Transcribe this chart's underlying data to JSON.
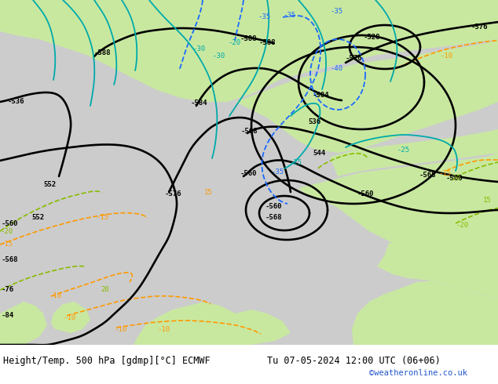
{
  "title_left": "Height/Temp. 500 hPa [gdmp][°C] ECMWF",
  "title_right": "Tu 07-05-2024 12:00 UTC (06+06)",
  "credit": "©weatheronline.co.uk",
  "bg_color": "#ffffff",
  "fig_width": 6.34,
  "fig_height": 4.9,
  "dpi": 100,
  "map_bg_green": "#c8e8a0",
  "map_bg_gray": "#cccccc",
  "map_bg_gray2": "#b8b8b8",
  "contour_black_color": "#000000",
  "contour_blue_color": "#1a6aff",
  "contour_cyan_color": "#00aaaa",
  "contour_green_color": "#88bb00",
  "contour_orange_color": "#ff9900",
  "label_color_black": "#000000",
  "label_color_blue": "#1a6aff",
  "label_color_cyan": "#009999",
  "label_color_green": "#669900",
  "label_color_orange": "#ff9900",
  "footer_text_color": "#000000",
  "credit_color": "#2255cc",
  "title_fontsize": 8.5,
  "credit_fontsize": 7.5,
  "label_fontsize": 6.5,
  "lw_black": 1.9,
  "lw_blue": 1.3,
  "lw_cyan": 1.3,
  "lw_green": 1.2,
  "lw_orange": 1.2
}
